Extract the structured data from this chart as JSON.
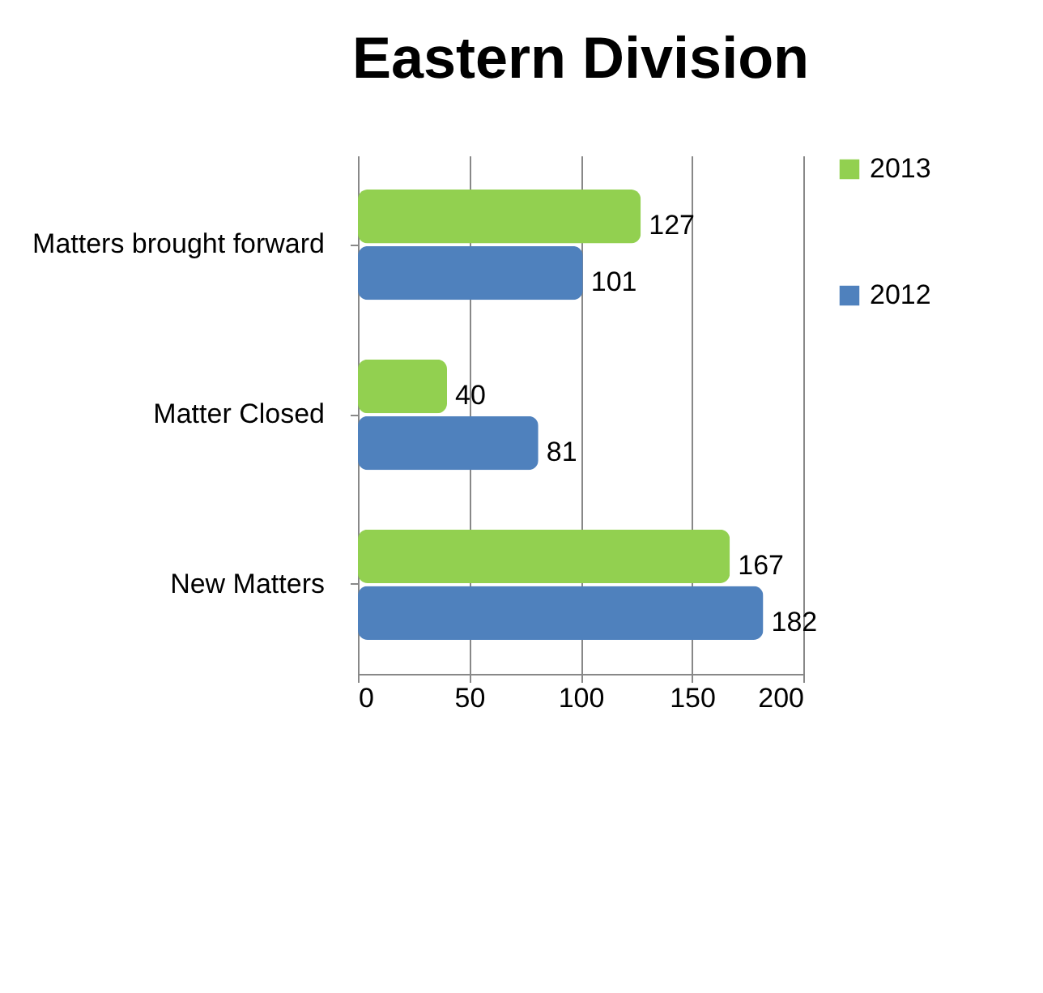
{
  "chart_data": {
    "type": "bar",
    "orientation": "horizontal",
    "title": "Eastern Division",
    "categories": [
      "Matters brought forward",
      "Matter Closed",
      "New Matters"
    ],
    "series": [
      {
        "name": "2013",
        "color": "#92d050",
        "values": [
          127,
          40,
          167
        ]
      },
      {
        "name": "2012",
        "color": "#4f81bd",
        "values": [
          101,
          81,
          182
        ]
      }
    ],
    "xlim": [
      0,
      200
    ],
    "xticks": [
      0,
      50,
      100,
      150,
      200
    ],
    "grid": "x",
    "legend": "right",
    "data_labels": true
  }
}
